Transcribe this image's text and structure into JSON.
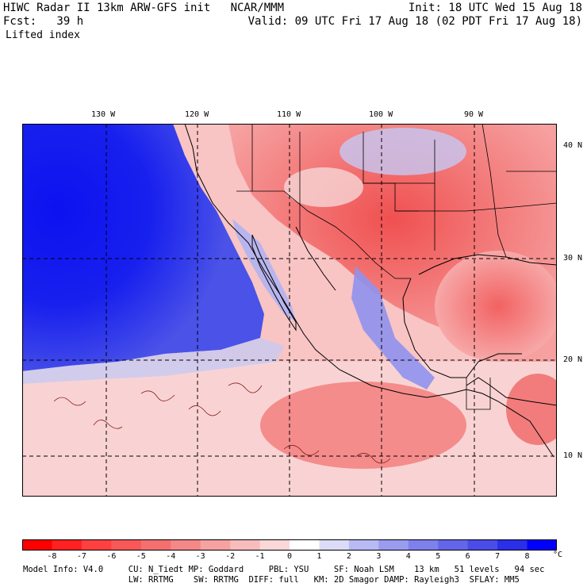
{
  "header": {
    "line1_left": "HIWC Radar II 13km ARW-GFS init   NCAR/MMM",
    "line1_right": "Init: 18 UTC Wed 15 Aug 18",
    "line2_left": "Fcst:   39 h",
    "line2_right": "Valid: 09 UTC Fri 17 Aug 18 (02 PDT Fri 17 Aug 18)",
    "field": "Lifted index"
  },
  "map": {
    "lon_labels": [
      "130 W",
      "120 W",
      "110 W",
      "100 W",
      "90 W"
    ],
    "lat_labels": [
      "40 N",
      "30 N",
      "20 N",
      "10 N"
    ]
  },
  "colorbar": {
    "ticks": [
      "-8",
      "-7",
      "-6",
      "-5",
      "-4",
      "-3",
      "-2",
      "-1",
      "0",
      "1",
      "2",
      "3",
      "4",
      "5",
      "6",
      "7",
      "8"
    ],
    "unit": "°C",
    "colors": [
      "#ff0000",
      "#ff2121",
      "#ff4040",
      "#f85858",
      "#f47070",
      "#f48888",
      "#f6a2a2",
      "#f8bcbc",
      "#fad8d8",
      "#ffffff",
      "#dcdcf8",
      "#b8baf4",
      "#9a9cf0",
      "#7e80ec",
      "#6466ea",
      "#4a4ce8",
      "#2c2ee8",
      "#0000ff"
    ]
  },
  "footer": {
    "line1": "Model Info: V4.0     CU: N_Tiedt MP: Goddard     PBL: YSU     SF: Noah LSM    13 km   51 levels   94 sec",
    "line2": "                     LW: RRTMG    SW: RRTMG  DIFF: full   KM: 2D Smagor DAMP: Rayleigh3  SFLAY: MM5"
  }
}
